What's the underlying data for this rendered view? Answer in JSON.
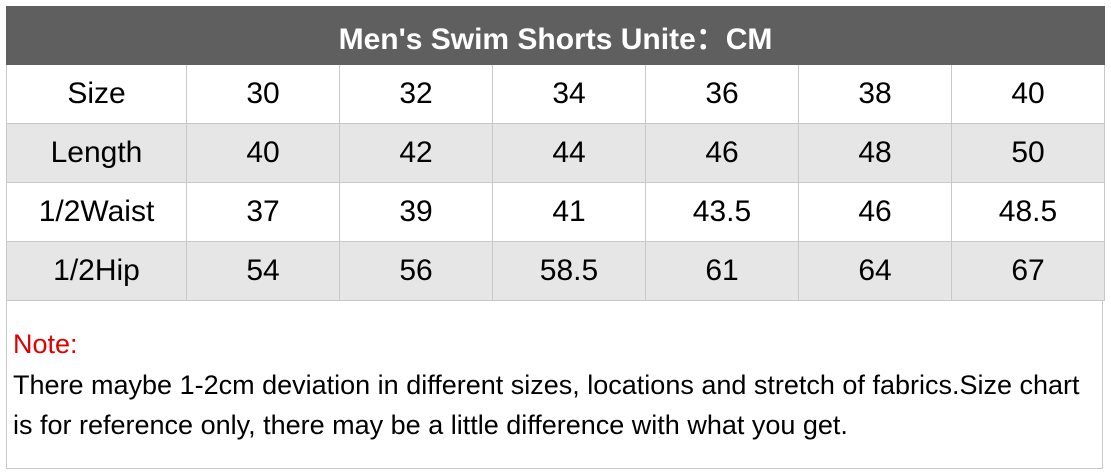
{
  "title": "Men's Swim Shorts Unite：CM",
  "table": {
    "rows": [
      {
        "label": "Size",
        "values": [
          "30",
          "32",
          "34",
          "36",
          "38",
          "40"
        ]
      },
      {
        "label": "Length",
        "values": [
          "40",
          "42",
          "44",
          "46",
          "48",
          "50"
        ]
      },
      {
        "label": "1/2Waist",
        "values": [
          "37",
          "39",
          "41",
          "43.5",
          "46",
          "48.5"
        ]
      },
      {
        "label": "1/2Hip",
        "values": [
          "54",
          "56",
          "58.5",
          "61",
          "64",
          "67"
        ]
      }
    ]
  },
  "note": {
    "label": "Note:",
    "text": "There maybe 1-2cm deviation in different sizes, locations and stretch of fabrics.Size chart is for reference only, there may be a little difference with what you get."
  },
  "colors": {
    "header_background": "#5f5f5f",
    "header_text": "#ffffff",
    "alt_row_background": "#e6e6e6",
    "note_label": "#e00000"
  }
}
